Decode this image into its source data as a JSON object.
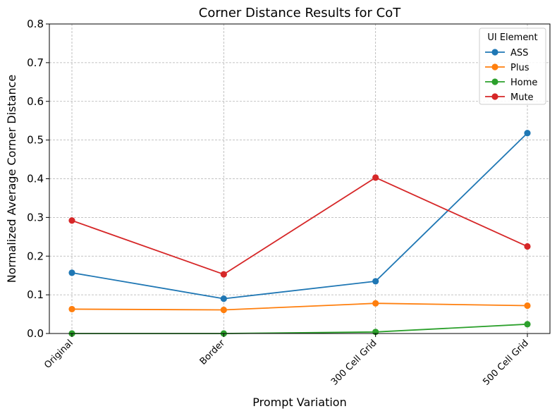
{
  "chart_data": {
    "type": "line",
    "title": "Corner Distance Results for CoT",
    "xlabel": "Prompt Variation",
    "ylabel": "Normalized Average Corner Distance",
    "categories": [
      "Original",
      "Border",
      "300 Cell Grid",
      "500 Cell Grid"
    ],
    "ylim": [
      0,
      0.8
    ],
    "yticks": [
      "0.0",
      "0.1",
      "0.2",
      "0.3",
      "0.4",
      "0.5",
      "0.6",
      "0.7",
      "0.8"
    ],
    "grid": true,
    "legend": {
      "title": "UI Element",
      "placement": "top-right"
    },
    "series": [
      {
        "name": "ASS",
        "color": "#1f77b4",
        "values": [
          0.157,
          0.09,
          0.135,
          0.518
        ]
      },
      {
        "name": "Plus",
        "color": "#ff7f0e",
        "values": [
          0.063,
          0.061,
          0.078,
          0.072
        ]
      },
      {
        "name": "Home",
        "color": "#2ca02c",
        "values": [
          0.0,
          0.0,
          0.004,
          0.024
        ]
      },
      {
        "name": "Mute",
        "color": "#d62728",
        "values": [
          0.292,
          0.153,
          0.403,
          0.225
        ]
      }
    ]
  }
}
